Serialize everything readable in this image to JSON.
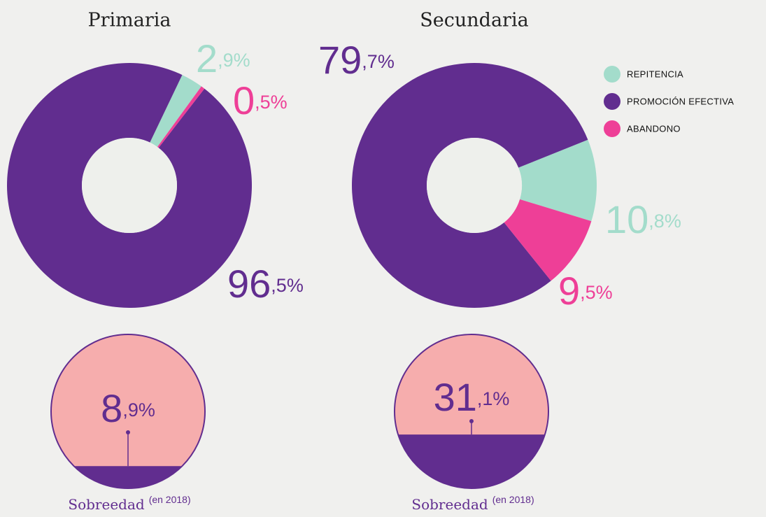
{
  "chart_data": [
    {
      "type": "pie",
      "title": "Primaria",
      "categories": [
        "REPITENCIA",
        "PROMOCIÓN EFECTIVA",
        "ABANDONO"
      ],
      "colors": [
        "#a3dccb",
        "#612d8f",
        "#ee3f97"
      ],
      "values": [
        2.9,
        96.5,
        0.5
      ],
      "value_labels": [
        "2,9%",
        "96,5%",
        "0,5%"
      ],
      "startangle": 36,
      "donut": true,
      "legend": "right"
    },
    {
      "type": "pie",
      "title": "Secundaria",
      "categories": [
        "REPITENCIA",
        "PROMOCIÓN EFECTIVA",
        "ABANDONO"
      ],
      "colors": [
        "#a3dccb",
        "#612d8f",
        "#ee3f97"
      ],
      "values": [
        10.8,
        79.7,
        9.5
      ],
      "value_labels": [
        "10,8%",
        "79,7%",
        "9,5%"
      ],
      "startangle": 107,
      "donut": true
    },
    {
      "type": "fill",
      "title": "Sobreedad",
      "subtitle": "(en 2018)",
      "values": [
        8.9
      ],
      "value_labels": [
        "8,9%"
      ],
      "color": "#612d8f",
      "background": "#f6adad"
    },
    {
      "type": "fill",
      "title": "Sobreedad",
      "subtitle": "(en 2018)",
      "values": [
        31.1
      ],
      "value_labels": [
        "31,1%"
      ],
      "color": "#612d8f",
      "background": "#f6adad"
    }
  ]
}
